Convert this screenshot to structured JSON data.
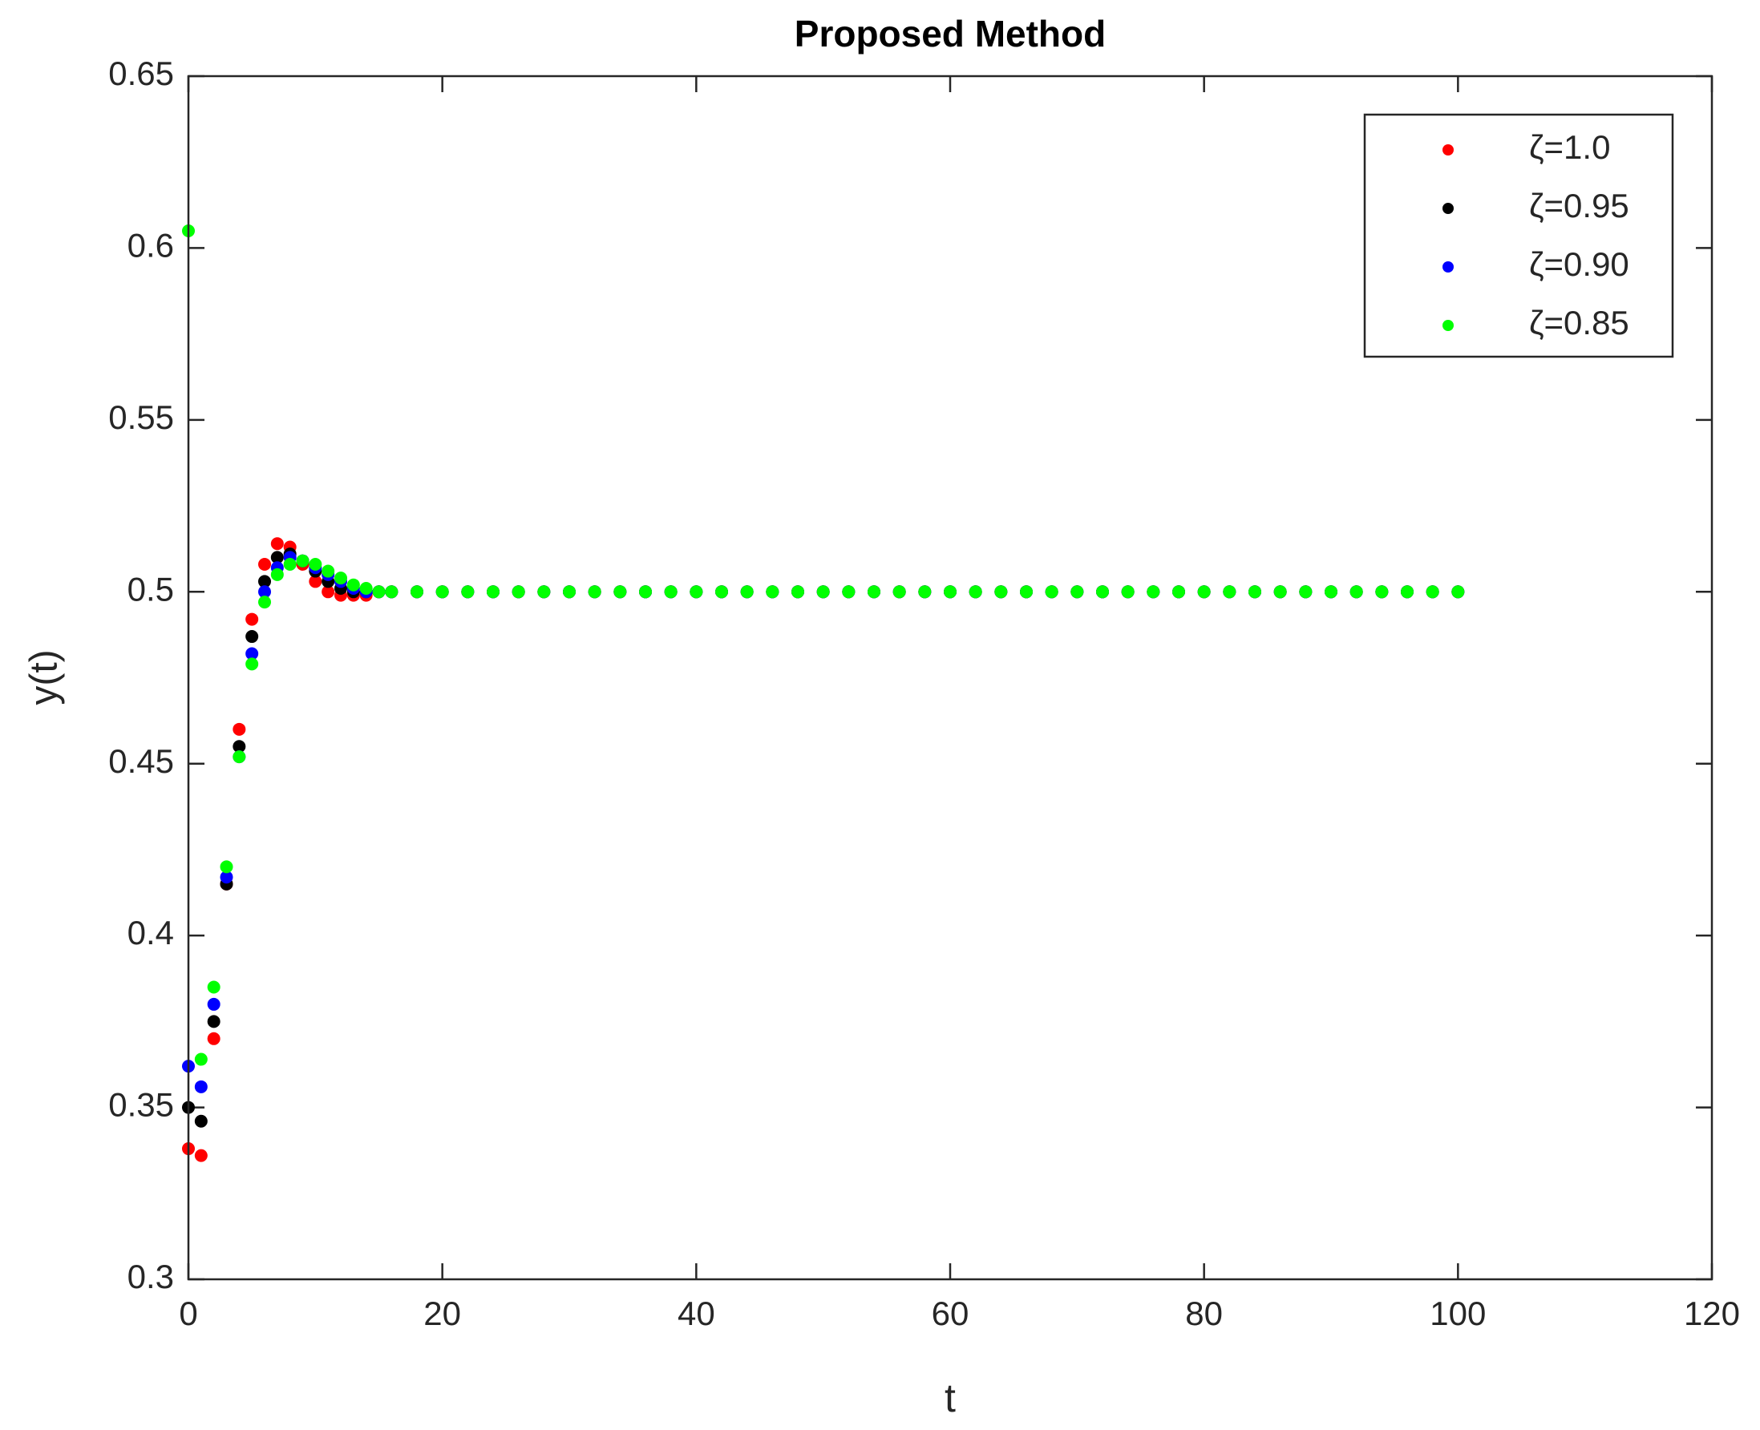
{
  "chart_data": {
    "type": "scatter",
    "title": "Proposed Method",
    "x_label": "t",
    "y_label": "y(t)",
    "x": [
      0,
      1,
      2,
      3,
      4,
      5,
      6,
      7,
      8,
      9,
      10,
      11,
      12,
      13,
      14,
      15,
      16,
      18,
      20,
      22,
      24,
      26,
      28,
      30,
      32,
      34,
      36,
      38,
      40,
      42,
      44,
      46,
      48,
      50,
      52,
      54,
      56,
      58,
      60,
      62,
      64,
      66,
      68,
      70,
      72,
      74,
      76,
      78,
      80,
      82,
      84,
      86,
      88,
      90,
      92,
      94,
      96,
      98,
      100
    ],
    "series": [
      {
        "name": "ζ=1.0",
        "color": "#ff0000",
        "values": [
          0.338,
          0.336,
          0.37,
          0.415,
          0.46,
          0.492,
          0.508,
          0.514,
          0.513,
          0.508,
          0.503,
          0.5,
          0.499,
          0.499,
          0.499,
          0.5,
          0.5,
          0.5,
          0.5,
          0.5,
          0.5,
          0.5,
          0.5,
          0.5,
          0.5,
          0.5,
          0.5,
          0.5,
          0.5,
          0.5,
          0.5,
          0.5,
          0.5,
          0.5,
          0.5,
          0.5,
          0.5,
          0.5,
          0.5,
          0.5,
          0.5,
          0.5,
          0.5,
          0.5,
          0.5,
          0.5,
          0.5,
          0.5,
          0.5,
          0.5,
          0.5,
          0.5,
          0.5,
          0.5,
          0.5,
          0.5,
          0.5,
          0.5,
          0.5
        ]
      },
      {
        "name": "ζ=0.95",
        "color": "#000000",
        "values": [
          0.35,
          0.346,
          0.375,
          0.415,
          0.455,
          0.487,
          0.503,
          0.51,
          0.511,
          0.509,
          0.506,
          0.503,
          0.501,
          0.5,
          0.5,
          0.5,
          0.5,
          0.5,
          0.5,
          0.5,
          0.5,
          0.5,
          0.5,
          0.5,
          0.5,
          0.5,
          0.5,
          0.5,
          0.5,
          0.5,
          0.5,
          0.5,
          0.5,
          0.5,
          0.5,
          0.5,
          0.5,
          0.5,
          0.5,
          0.5,
          0.5,
          0.5,
          0.5,
          0.5,
          0.5,
          0.5,
          0.5,
          0.5,
          0.5,
          0.5,
          0.5,
          0.5,
          0.5,
          0.5,
          0.5,
          0.5,
          0.5,
          0.5,
          0.5
        ]
      },
      {
        "name": "ζ=0.90",
        "color": "#0000ff",
        "values": [
          0.362,
          0.356,
          0.38,
          0.417,
          0.452,
          0.482,
          0.5,
          0.507,
          0.51,
          0.509,
          0.507,
          0.505,
          0.503,
          0.501,
          0.5,
          0.5,
          0.5,
          0.5,
          0.5,
          0.5,
          0.5,
          0.5,
          0.5,
          0.5,
          0.5,
          0.5,
          0.5,
          0.5,
          0.5,
          0.5,
          0.5,
          0.5,
          0.5,
          0.5,
          0.5,
          0.5,
          0.5,
          0.5,
          0.5,
          0.5,
          0.5,
          0.5,
          0.5,
          0.5,
          0.5,
          0.5,
          0.5,
          0.5,
          0.5,
          0.5,
          0.5,
          0.5,
          0.5,
          0.5,
          0.5,
          0.5,
          0.5,
          0.5,
          0.5
        ]
      },
      {
        "name": "ζ=0.85",
        "color": "#00ff00",
        "values": [
          0.605,
          0.364,
          0.385,
          0.42,
          0.452,
          0.479,
          0.497,
          0.505,
          0.508,
          0.509,
          0.508,
          0.506,
          0.504,
          0.502,
          0.501,
          0.5,
          0.5,
          0.5,
          0.5,
          0.5,
          0.5,
          0.5,
          0.5,
          0.5,
          0.5,
          0.5,
          0.5,
          0.5,
          0.5,
          0.5,
          0.5,
          0.5,
          0.5,
          0.5,
          0.5,
          0.5,
          0.5,
          0.5,
          0.5,
          0.5,
          0.5,
          0.5,
          0.5,
          0.5,
          0.5,
          0.5,
          0.5,
          0.5,
          0.5,
          0.5,
          0.5,
          0.5,
          0.5,
          0.5,
          0.5,
          0.5,
          0.5,
          0.5,
          0.5
        ]
      }
    ],
    "xlim": [
      0,
      120
    ],
    "xticks": [
      0,
      20,
      40,
      60,
      80,
      100,
      120
    ],
    "ylim": [
      0.3,
      0.65
    ],
    "yticks": [
      0.3,
      0.35,
      0.4,
      0.45,
      0.5,
      0.55,
      0.6,
      0.65
    ],
    "grid": false,
    "legend": "northeast"
  }
}
